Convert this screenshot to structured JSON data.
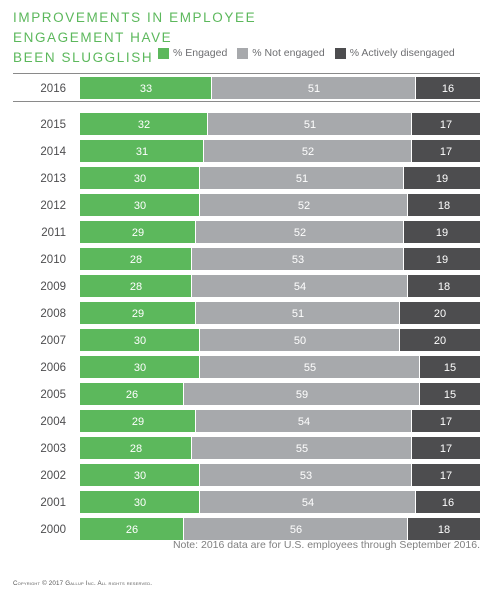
{
  "header": {
    "title_line1": "IMPROVEMENTS IN EMPLOYEE ENGAGEMENT HAVE",
    "title_line2": "BEEN SLUGGLISH"
  },
  "legend": [
    {
      "label": "% Engaged",
      "color": "#5cb85c"
    },
    {
      "label": "% Not engaged",
      "color": "#a7a9ac"
    },
    {
      "label": "% Actively disengaged",
      "color": "#4d4d4f"
    }
  ],
  "chart_data": {
    "type": "bar",
    "orientation": "horizontal",
    "stacked": true,
    "title": "IMPROVEMENTS IN EMPLOYEE ENGAGEMENT HAVE BEEN SLUGGLISH",
    "categories": [
      "2016",
      "2015",
      "2014",
      "2013",
      "2012",
      "2011",
      "2010",
      "2009",
      "2008",
      "2007",
      "2006",
      "2005",
      "2004",
      "2003",
      "2002",
      "2001",
      "2000"
    ],
    "series": [
      {
        "name": "% Engaged",
        "color": "#5cb85c",
        "values": [
          33,
          32,
          31,
          30,
          30,
          29,
          28,
          28,
          29,
          30,
          30,
          26,
          29,
          28,
          30,
          30,
          26
        ]
      },
      {
        "name": "% Not engaged",
        "color": "#a7a9ac",
        "values": [
          51,
          51,
          52,
          51,
          52,
          52,
          53,
          54,
          51,
          50,
          55,
          59,
          54,
          55,
          53,
          54,
          56
        ]
      },
      {
        "name": "% Actively disengaged",
        "color": "#4d4d4f",
        "values": [
          16,
          17,
          17,
          19,
          18,
          19,
          19,
          18,
          20,
          20,
          15,
          15,
          17,
          17,
          17,
          16,
          18
        ]
      }
    ],
    "xlim": [
      0,
      100
    ],
    "legend_position": "top-right",
    "grid": false
  },
  "note": "Note: 2016 data are for U.S. employees through September 2016.",
  "copyright": "Copyright © 2017 Gallup Inc. All rights reserved."
}
